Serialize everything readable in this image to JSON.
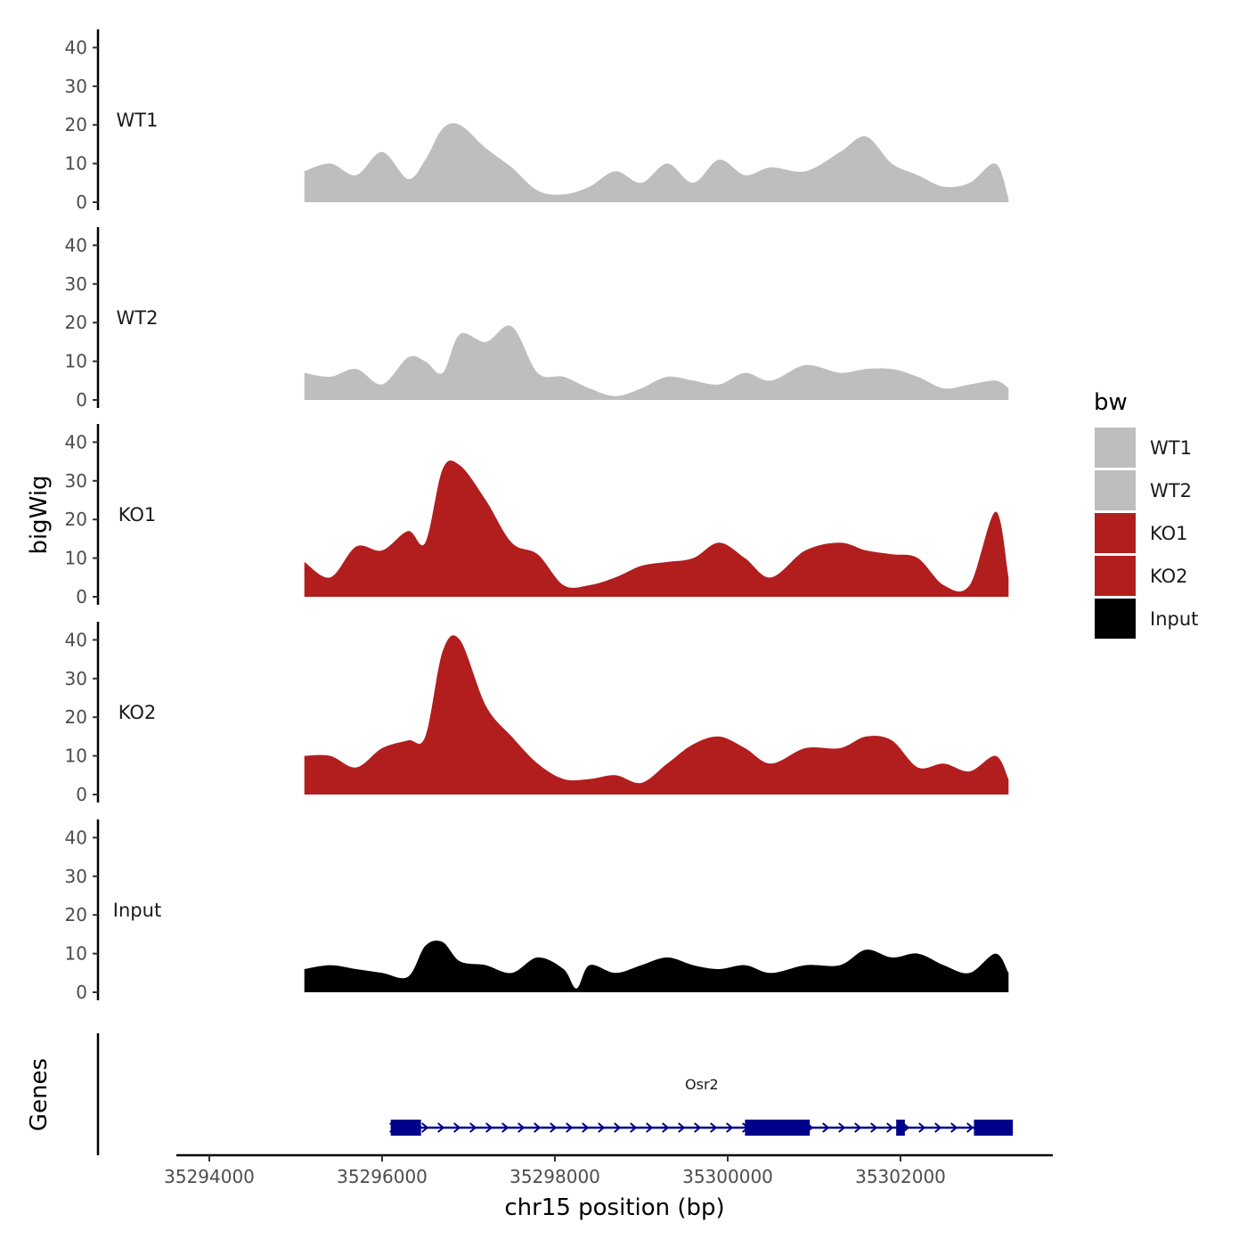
{
  "chart_data": {
    "type": "area",
    "xlabel": "chr15 position (bp)",
    "ylabel": "bigWig",
    "genes_label": "Genes",
    "x_range": [
      35293800,
      35303800
    ],
    "x_ticks": [
      35294000,
      35296000,
      35298000,
      35300000,
      35302000
    ],
    "x_tick_labels": [
      "35294000",
      "35296000",
      "35298000",
      "35300000",
      "35302000"
    ],
    "y_range": [
      0,
      45
    ],
    "y_ticks": [
      0,
      10,
      20,
      30,
      40
    ],
    "y_tick_labels": [
      "0",
      "10",
      "20",
      "30",
      "40"
    ],
    "legend": {
      "title": "bw",
      "items": [
        {
          "label": "WT1",
          "color": "#bebebe"
        },
        {
          "label": "WT2",
          "color": "#bebebe"
        },
        {
          "label": "KO1",
          "color": "#b21e1e"
        },
        {
          "label": "KO2",
          "color": "#b21e1e"
        },
        {
          "label": "Input",
          "color": "#000000"
        }
      ]
    },
    "tracks": [
      {
        "name": "WT1",
        "color": "#bebebe",
        "x": [
          35295100,
          35295400,
          35295700,
          35296000,
          35296300,
          35296500,
          35296700,
          35296900,
          35297200,
          35297500,
          35297800,
          35298100,
          35298400,
          35298700,
          35299000,
          35299300,
          35299600,
          35299900,
          35300200,
          35300500,
          35300900,
          35301300,
          35301600,
          35301900,
          35302200,
          35302500,
          35302800,
          35303100,
          35303250
        ],
        "values": [
          8,
          10,
          7,
          13,
          6,
          11,
          19,
          20,
          14,
          9,
          3,
          2,
          4,
          8,
          5,
          10,
          5,
          11,
          7,
          9,
          8,
          13,
          17,
          10,
          7,
          4,
          5,
          10,
          1
        ]
      },
      {
        "name": "WT2",
        "color": "#bebebe",
        "x": [
          35295100,
          35295400,
          35295700,
          35296000,
          35296300,
          35296500,
          35296700,
          35296900,
          35297200,
          35297500,
          35297800,
          35298100,
          35298400,
          35298700,
          35299000,
          35299300,
          35299600,
          35299900,
          35300200,
          35300500,
          35300900,
          35301300,
          35301600,
          35301900,
          35302200,
          35302500,
          35302800,
          35303100,
          35303250
        ],
        "values": [
          7,
          6,
          8,
          4,
          11,
          10,
          7,
          17,
          15,
          19,
          7,
          6,
          3,
          1,
          3,
          6,
          5,
          4,
          7,
          5,
          9,
          7,
          8,
          8,
          6,
          3,
          4,
          5,
          3
        ]
      },
      {
        "name": "KO1",
        "color": "#b21e1e",
        "x": [
          35295100,
          35295400,
          35295700,
          35296000,
          35296300,
          35296500,
          35296700,
          35296900,
          35297200,
          35297500,
          35297800,
          35298100,
          35298400,
          35298700,
          35299000,
          35299300,
          35299600,
          35299900,
          35300200,
          35300500,
          35300900,
          35301300,
          35301600,
          35301900,
          35302200,
          35302500,
          35302800,
          35303100,
          35303250
        ],
        "values": [
          9,
          5,
          13,
          12,
          17,
          14,
          33,
          34,
          25,
          14,
          11,
          3,
          3,
          5,
          8,
          9,
          10,
          14,
          10,
          5,
          12,
          14,
          12,
          11,
          10,
          3,
          3,
          22,
          5
        ]
      },
      {
        "name": "KO2",
        "color": "#b21e1e",
        "x": [
          35295100,
          35295400,
          35295700,
          35296000,
          35296300,
          35296500,
          35296700,
          35296900,
          35297200,
          35297500,
          35297800,
          35298100,
          35298400,
          35298700,
          35299000,
          35299300,
          35299600,
          35299900,
          35300200,
          35300500,
          35300900,
          35301300,
          35301600,
          35301900,
          35302200,
          35302500,
          35302800,
          35303100,
          35303250
        ],
        "values": [
          10,
          10,
          7,
          12,
          14,
          15,
          37,
          40,
          23,
          15,
          8,
          4,
          4,
          5,
          3,
          8,
          13,
          15,
          12,
          8,
          12,
          12,
          15,
          14,
          7,
          8,
          6,
          10,
          4
        ]
      },
      {
        "name": "Input",
        "color": "#000000",
        "x": [
          35295100,
          35295400,
          35295700,
          35296000,
          35296300,
          35296500,
          35296700,
          35296900,
          35297200,
          35297500,
          35297800,
          35298100,
          35298250,
          35298400,
          35298700,
          35299000,
          35299300,
          35299600,
          35299900,
          35300200,
          35300500,
          35300900,
          35301300,
          35301600,
          35301900,
          35302200,
          35302500,
          35302800,
          35303100,
          35303250
        ],
        "values": [
          6,
          7,
          6,
          5,
          4,
          12,
          13,
          8,
          7,
          5,
          9,
          6,
          1,
          7,
          5,
          7,
          9,
          7,
          6,
          7,
          5,
          7,
          7,
          11,
          9,
          10,
          7,
          5,
          10,
          5
        ]
      }
    ],
    "gene": {
      "name": "Osr2",
      "strand": "+",
      "start": 35296100,
      "end": 35303300,
      "exons": [
        [
          35296100,
          35296450
        ],
        [
          35300200,
          35300950
        ],
        [
          35301950,
          35302050
        ],
        [
          35302850,
          35303300
        ]
      ],
      "color": "#00008b"
    }
  }
}
